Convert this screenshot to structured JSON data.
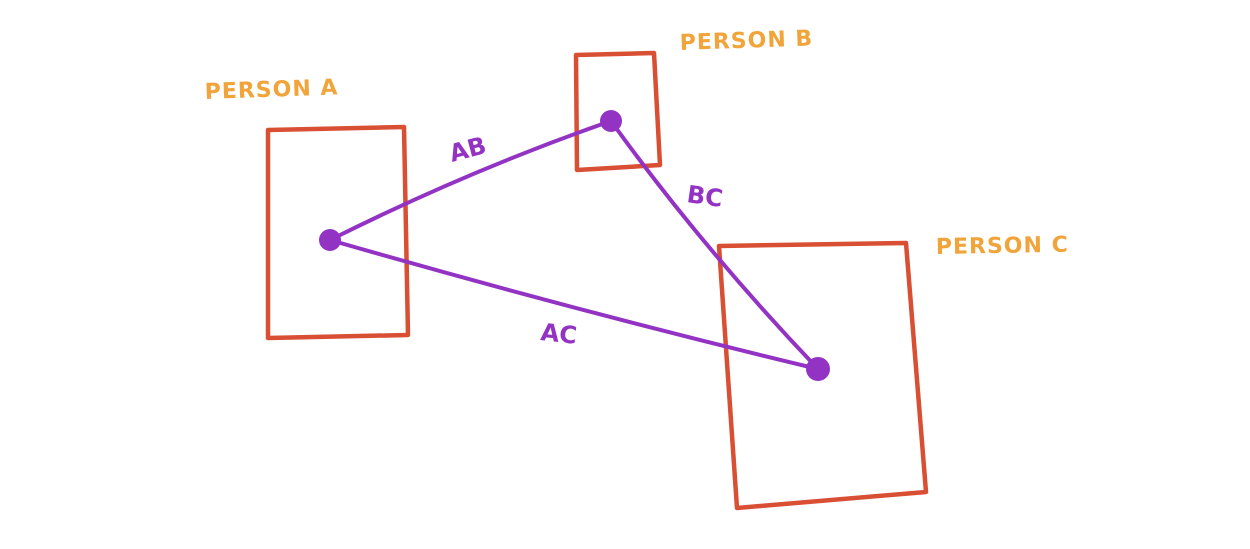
{
  "colors": {
    "box": "#d94f33",
    "connection": "#9333c4",
    "person_label": "#f0a43a",
    "background": "#ffffff"
  },
  "persons": [
    {
      "id": "a",
      "label": "PERSON A"
    },
    {
      "id": "b",
      "label": "PERSON B"
    },
    {
      "id": "c",
      "label": "PERSON C"
    }
  ],
  "connections": [
    {
      "id": "ab",
      "label": "AB"
    },
    {
      "id": "bc",
      "label": "BC"
    },
    {
      "id": "ac",
      "label": "AC"
    }
  ]
}
